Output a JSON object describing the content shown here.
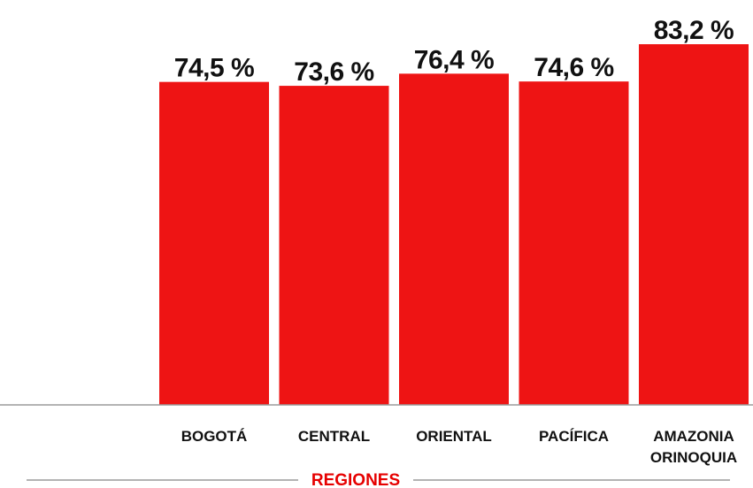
{
  "chart_data": {
    "type": "bar",
    "categories": [
      [
        "BOGOTÁ"
      ],
      [
        "CENTRAL"
      ],
      [
        "ORIENTAL"
      ],
      [
        "PACÍFICA"
      ],
      [
        "AMAZONIA",
        "ORINOQUIA"
      ]
    ],
    "values": [
      74.5,
      73.6,
      76.4,
      74.6,
      83.2
    ],
    "value_labels": [
      "74,5 %",
      "73,6 %",
      "76,4 %",
      "74,6 %",
      "83,2 %"
    ],
    "xlabel": "REGIONES",
    "ylabel": "",
    "ylim": [
      0,
      83.2
    ],
    "grid": false,
    "colors": {
      "bar": "#ee1414",
      "axis_label": "#e60000",
      "rule": "#9a9a9a",
      "text": "#111111"
    }
  }
}
